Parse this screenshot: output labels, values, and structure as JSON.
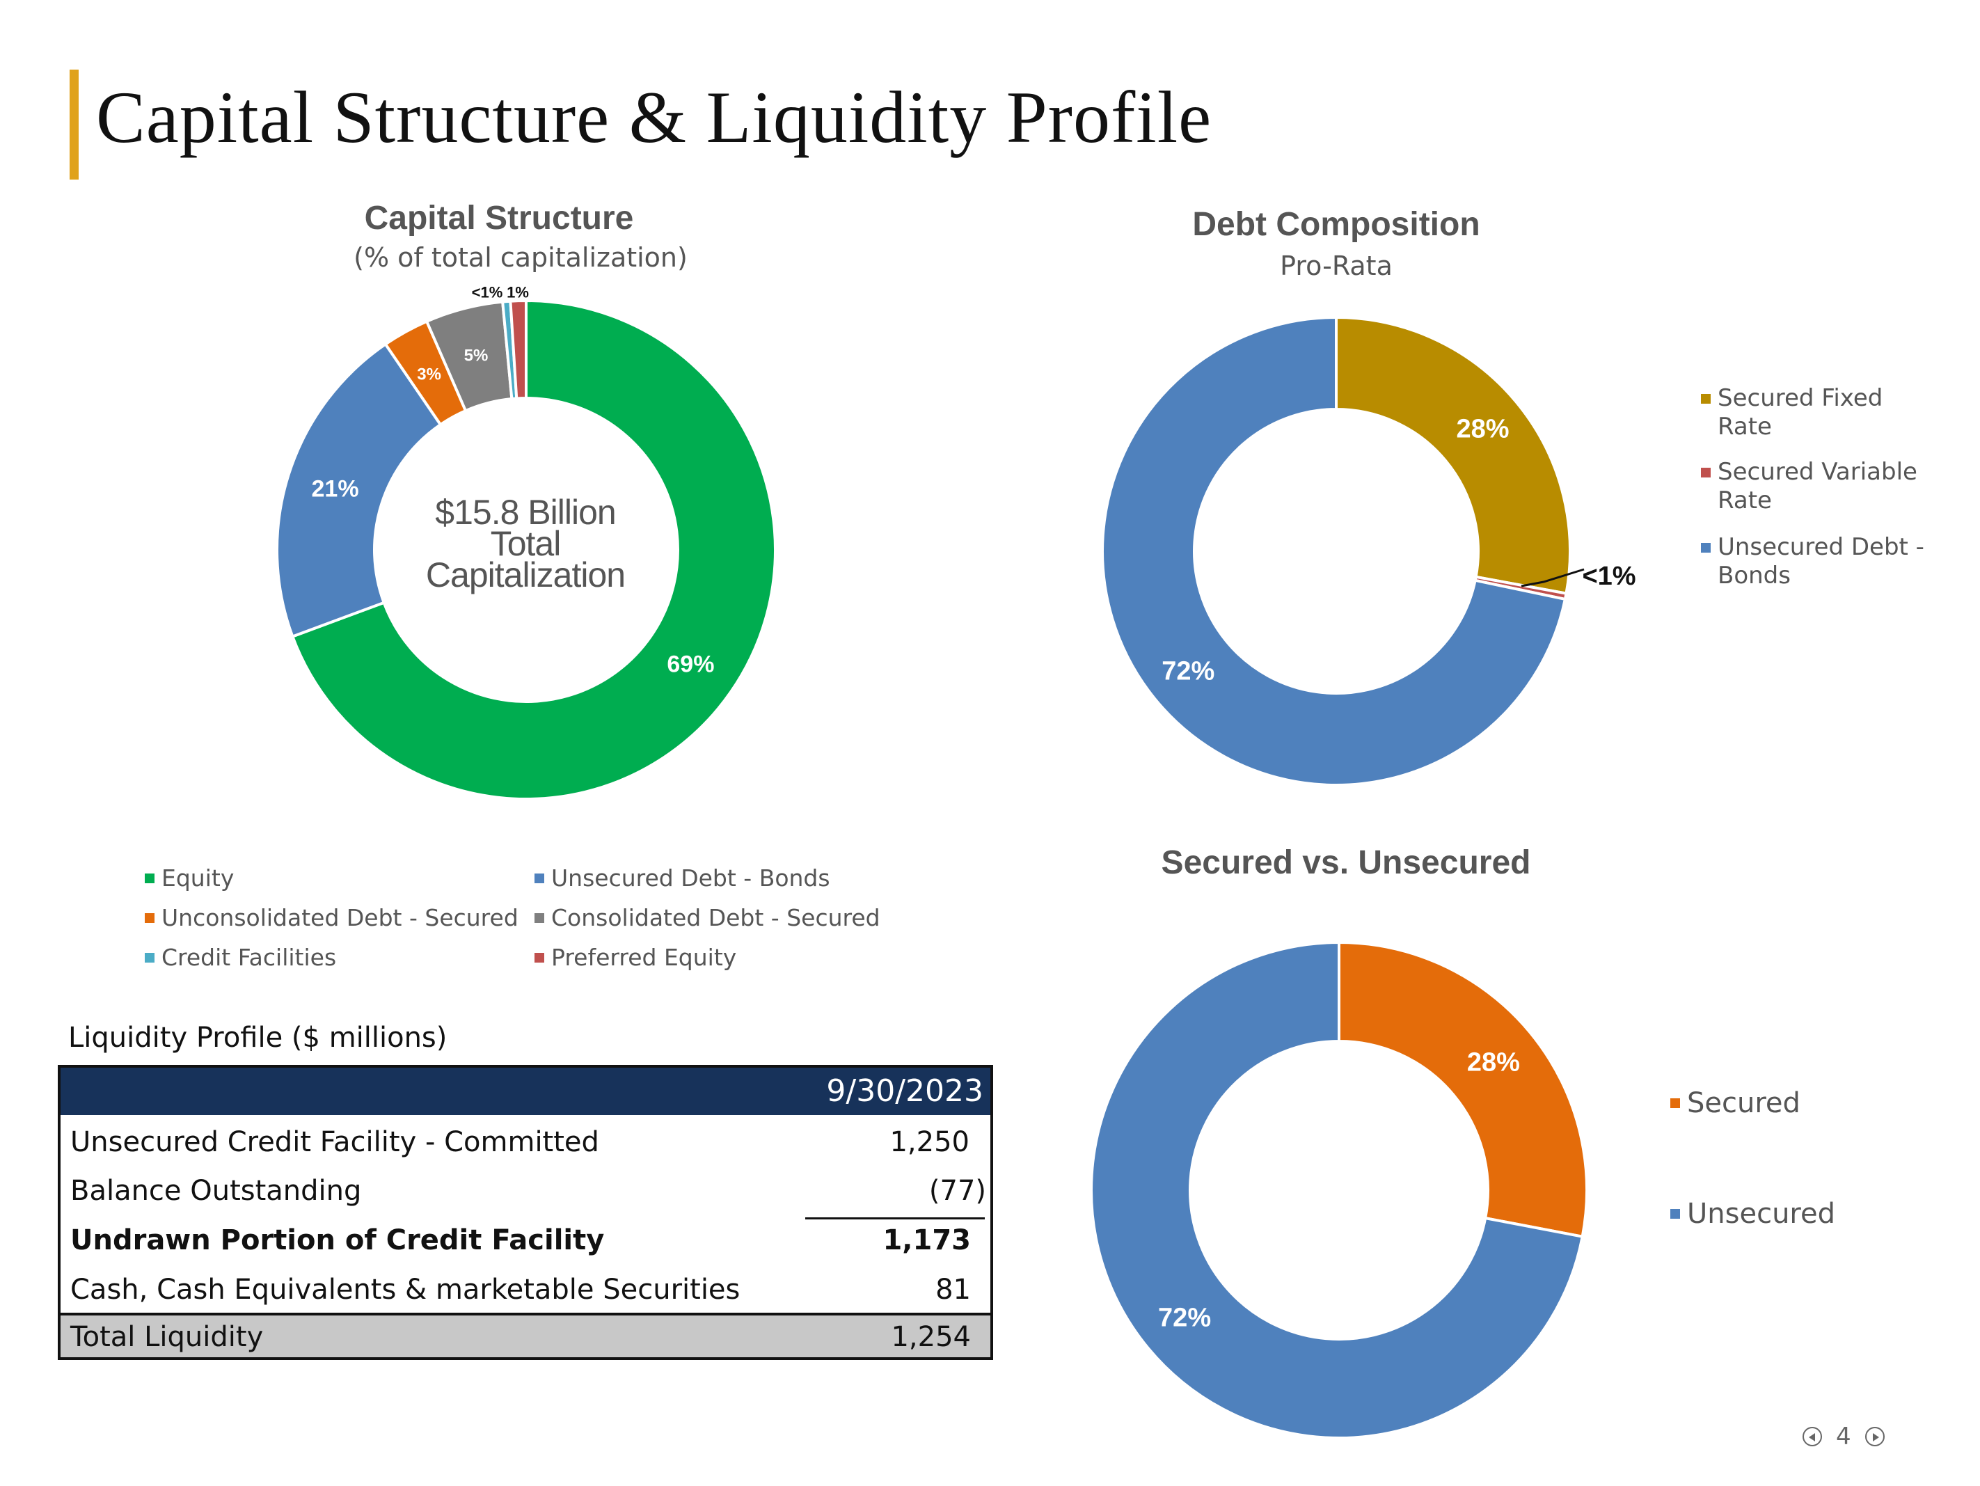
{
  "page": {
    "title": "Capital Structure & Liquidity Profile",
    "page_number": "4"
  },
  "colors": {
    "accent_bar": "#E0A21A",
    "table_header": "#17325A"
  },
  "chart_data": [
    {
      "type": "pie",
      "title": "Capital Structure",
      "subtitle": "(% of total capitalization)",
      "center_label": [
        "$15.8 Billion",
        "Total",
        "Capitalization"
      ],
      "legend_placement": "bottom",
      "slices": [
        {
          "name": "Equity",
          "value": 69,
          "label": "69%",
          "color": "#00AD50"
        },
        {
          "name": "Unsecured Debt - Bonds",
          "value": 21,
          "label": "21%",
          "color": "#4F81BD"
        },
        {
          "name": "Unconsolidated Debt - Secured",
          "value": 3,
          "label": "3%",
          "color": "#E46C0A"
        },
        {
          "name": "Consolidated Debt - Secured",
          "value": 5,
          "label": "5%",
          "color": "#7F7F7F"
        },
        {
          "name": "Credit Facilities",
          "value": 0.5,
          "label": "<1%",
          "color": "#4BACC6"
        },
        {
          "name": "Preferred Equity",
          "value": 1,
          "label": "1%",
          "color": "#C0504D"
        }
      ]
    },
    {
      "type": "pie",
      "title": "Debt Composition",
      "subtitle": "Pro-Rata",
      "legend_placement": "right",
      "slices": [
        {
          "name": "Secured Fixed Rate",
          "value": 28,
          "label": "28%",
          "color": "#B88C00"
        },
        {
          "name": "Secured Variable Rate",
          "value": 0.4,
          "label": "<1%",
          "color": "#C0504D"
        },
        {
          "name": "Unsecured Debt - Bonds",
          "value": 72,
          "label": "72%",
          "color": "#4F81BD"
        }
      ]
    },
    {
      "type": "pie",
      "title": "Secured vs. Unsecured",
      "legend_placement": "right",
      "slices": [
        {
          "name": "Secured",
          "value": 28,
          "label": "28%",
          "color": "#E46C0A"
        },
        {
          "name": "Unsecured",
          "value": 72,
          "label": "72%",
          "color": "#4F81BD"
        }
      ]
    }
  ],
  "liquidity": {
    "label": "Liquidity Profile ($ millions)",
    "date": "9/30/2023",
    "rows": [
      {
        "label": "Unsecured Credit Facility - Committed",
        "value": "1,250"
      },
      {
        "label": "Balance Outstanding",
        "value": "(77)"
      },
      {
        "label": "Undrawn Portion of Credit Facility",
        "value": "1,173"
      },
      {
        "label": "Cash, Cash Equivalents & marketable Securities",
        "value": "81"
      },
      {
        "label": "Total Liquidity",
        "value": "1,254"
      }
    ]
  }
}
